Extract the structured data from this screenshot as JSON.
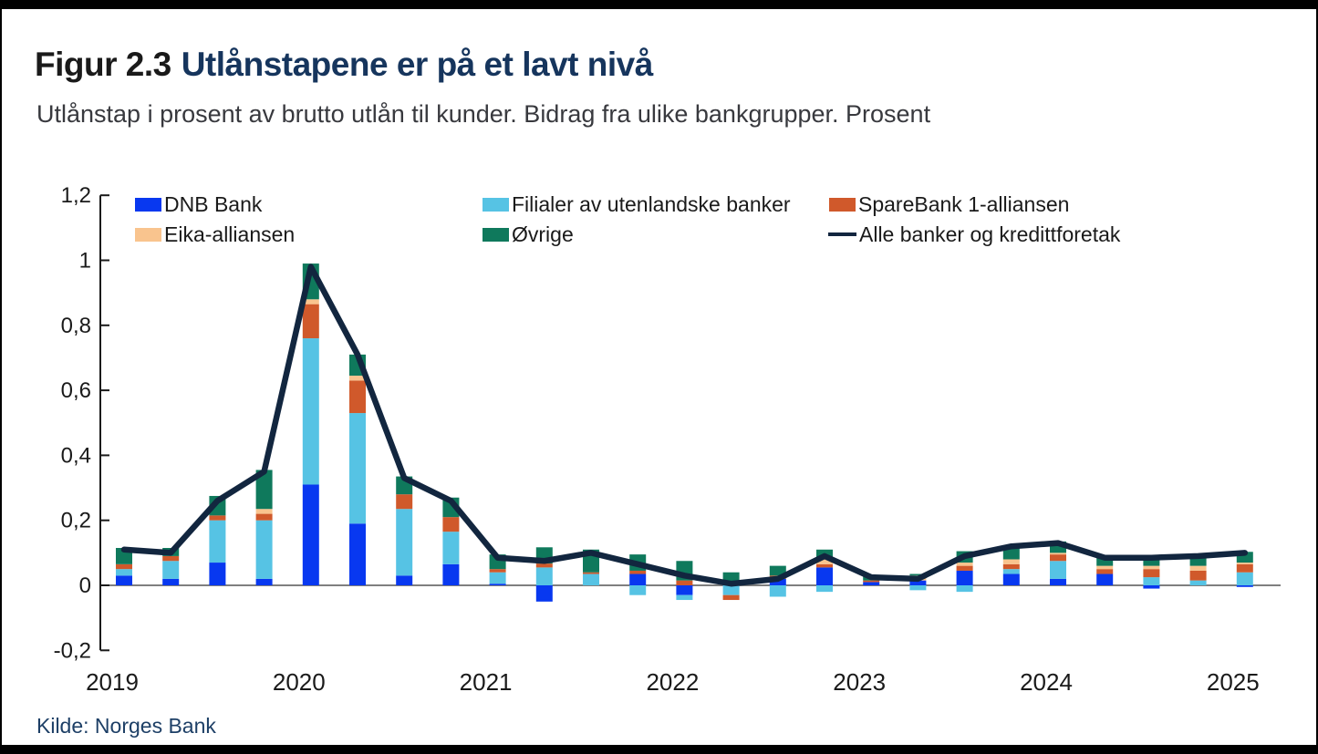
{
  "chart_data": {
    "type": "bar",
    "subtype": "stacked-bars-with-total-line",
    "figure_label": "Figur 2.3",
    "title": "Utlånstapene er på et lavt nivå",
    "subtitle": "Utlånstap i prosent av brutto utlån til kunder. Bidrag fra ulike bankgrupper. Prosent",
    "source": "Kilde: Norges Bank",
    "x": [
      "2019K1",
      "2019K2",
      "2019K3",
      "2019K4",
      "2020K1",
      "2020K2",
      "2020K3",
      "2020K4",
      "2021K1",
      "2021K2",
      "2021K3",
      "2021K4",
      "2022K1",
      "2022K2",
      "2022K3",
      "2022K4",
      "2023K1",
      "2023K2",
      "2023K3",
      "2023K4",
      "2024K1",
      "2024K2",
      "2024K3",
      "2024K4",
      "2025K1"
    ],
    "series": [
      {
        "name": "DNB Bank",
        "color": "#0838f0",
        "values": [
          0.03,
          0.02,
          0.07,
          0.02,
          0.31,
          0.19,
          0.03,
          0.065,
          0.005,
          -0.05,
          0.0,
          0.035,
          -0.03,
          0.0,
          0.02,
          0.055,
          0.01,
          0.015,
          0.045,
          0.035,
          0.02,
          0.035,
          -0.01,
          0.0,
          -0.005
        ]
      },
      {
        "name": "Filialer av utenlandske banker",
        "color": "#56c3e4",
        "values": [
          0.02,
          0.055,
          0.13,
          0.18,
          0.45,
          0.34,
          0.205,
          0.1,
          0.035,
          0.055,
          0.035,
          -0.03,
          -0.015,
          -0.03,
          -0.035,
          -0.02,
          0.0,
          -0.015,
          -0.02,
          0.015,
          0.055,
          0.0,
          0.025,
          0.015,
          0.04
        ]
      },
      {
        "name": "SpareBank 1-alliansen",
        "color": "#d0592b",
        "values": [
          0.015,
          0.015,
          0.015,
          0.02,
          0.105,
          0.1,
          0.045,
          0.045,
          0.01,
          0.012,
          0.005,
          0.01,
          0.015,
          -0.015,
          0.01,
          0.01,
          0.005,
          0.0,
          0.015,
          0.015,
          0.02,
          0.015,
          0.025,
          0.03,
          0.025
        ]
      },
      {
        "name": "Eika-alliansen",
        "color": "#f9c48e",
        "values": [
          0.0,
          0.0,
          0.0,
          0.015,
          0.015,
          0.015,
          0.0,
          0.0,
          0.0,
          0.0,
          0.0,
          0.0,
          0.0,
          0.0,
          0.0,
          0.02,
          0.0,
          0.015,
          0.01,
          0.015,
          0.005,
          0.01,
          0.01,
          0.015,
          0.005
        ]
      },
      {
        "name": "Øvrige",
        "color": "#0f795c",
        "values": [
          0.05,
          0.025,
          0.06,
          0.12,
          0.11,
          0.065,
          0.055,
          0.06,
          0.045,
          0.05,
          0.07,
          0.05,
          0.06,
          0.04,
          0.03,
          0.025,
          0.015,
          0.005,
          0.035,
          0.04,
          0.035,
          0.03,
          0.03,
          0.035,
          0.033
        ]
      }
    ],
    "line_series": {
      "name": "Alle banker og kredittforetak",
      "color": "#12263f",
      "values": [
        0.11,
        0.1,
        0.26,
        0.35,
        0.98,
        0.71,
        0.33,
        0.26,
        0.085,
        0.075,
        0.1,
        0.065,
        0.03,
        0.005,
        0.02,
        0.09,
        0.025,
        0.02,
        0.09,
        0.12,
        0.13,
        0.085,
        0.085,
        0.09,
        0.1
      ]
    },
    "y_ticks": [
      {
        "label": "1,2",
        "value": 1.2
      },
      {
        "label": "1",
        "value": 1.0
      },
      {
        "label": "0,8",
        "value": 0.8
      },
      {
        "label": "0,6",
        "value": 0.6
      },
      {
        "label": "0,4",
        "value": 0.4
      },
      {
        "label": "0,2",
        "value": 0.2
      },
      {
        "label": "0",
        "value": 0.0
      },
      {
        "label": "-0,2",
        "value": -0.2
      }
    ],
    "x_ticks": [
      {
        "label": "2019",
        "quarter_index": 0
      },
      {
        "label": "2020",
        "quarter_index": 4
      },
      {
        "label": "2021",
        "quarter_index": 8
      },
      {
        "label": "2022",
        "quarter_index": 12
      },
      {
        "label": "2023",
        "quarter_index": 16
      },
      {
        "label": "2024",
        "quarter_index": 20
      },
      {
        "label": "2025",
        "quarter_index": 24
      }
    ],
    "ylim": [
      -0.2,
      1.2
    ],
    "grid": "zero-line-only",
    "legend_position": "top-inside"
  }
}
